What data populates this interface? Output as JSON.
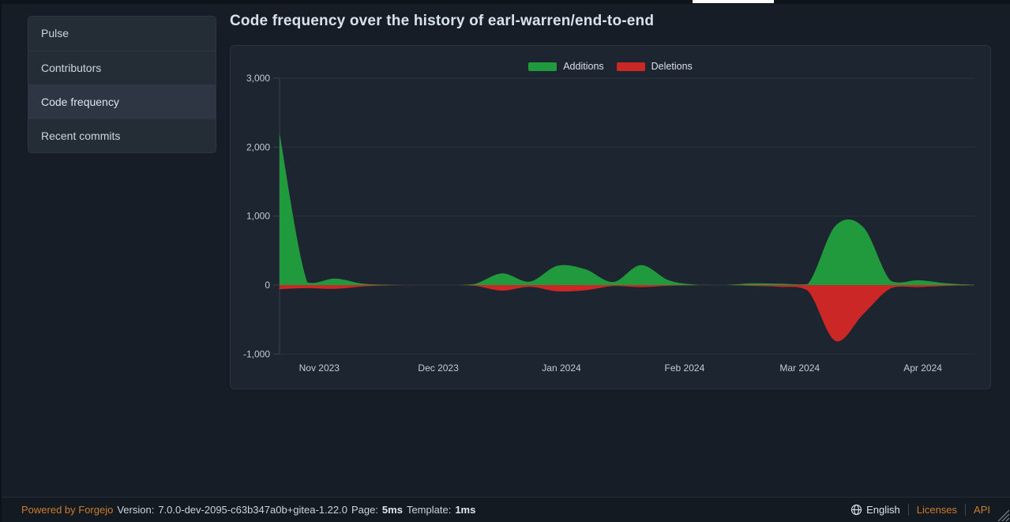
{
  "sidebar": {
    "items": [
      {
        "label": "Pulse",
        "active": false
      },
      {
        "label": "Contributors",
        "active": false
      },
      {
        "label": "Code frequency",
        "active": true
      },
      {
        "label": "Recent commits",
        "active": false
      }
    ]
  },
  "main": {
    "title": "Code frequency over the history of earl-warren/end-to-end"
  },
  "chart_data": {
    "type": "area",
    "title": "Code frequency over the history of earl-warren/end-to-end",
    "smooth": true,
    "grid": true,
    "legend_position": "top-center",
    "legend": [
      "Additions",
      "Deletions"
    ],
    "ylim": [
      -1000,
      3000
    ],
    "y_ticks": [
      {
        "value": 3000,
        "label": "3,000"
      },
      {
        "value": 2000,
        "label": "2,000"
      },
      {
        "value": 1000,
        "label": "1,000"
      },
      {
        "value": 0,
        "label": "0"
      },
      {
        "value": -1000,
        "label": "-1,000"
      }
    ],
    "x_axis_unit": "weeks (day offset from first week shown)",
    "x_max_day": 175,
    "x_labels": [
      {
        "label": "Nov 2023",
        "day": 10
      },
      {
        "label": "Dec 2023",
        "day": 40
      },
      {
        "label": "Jan 2024",
        "day": 71
      },
      {
        "label": "Feb 2024",
        "day": 102
      },
      {
        "label": "Mar 2024",
        "day": 131
      },
      {
        "label": "Apr 2024",
        "day": 162
      }
    ],
    "series": [
      {
        "name": "Additions",
        "color": "#219a3e",
        "points": [
          [
            0,
            2200
          ],
          [
            7,
            40
          ],
          [
            14,
            95
          ],
          [
            21,
            20
          ],
          [
            28,
            5
          ],
          [
            35,
            0
          ],
          [
            42,
            0
          ],
          [
            49,
            15
          ],
          [
            56,
            170
          ],
          [
            63,
            50
          ],
          [
            70,
            280
          ],
          [
            77,
            230
          ],
          [
            84,
            45
          ],
          [
            91,
            290
          ],
          [
            98,
            70
          ],
          [
            105,
            5
          ],
          [
            112,
            0
          ],
          [
            119,
            25
          ],
          [
            126,
            20
          ],
          [
            133,
            15
          ],
          [
            140,
            860
          ],
          [
            147,
            840
          ],
          [
            154,
            60
          ],
          [
            161,
            70
          ],
          [
            168,
            25
          ],
          [
            175,
            3
          ]
        ]
      },
      {
        "name": "Deletions",
        "color": "#cb2727",
        "points": [
          [
            0,
            -60
          ],
          [
            7,
            -45
          ],
          [
            14,
            -55
          ],
          [
            21,
            -20
          ],
          [
            28,
            -5
          ],
          [
            35,
            0
          ],
          [
            42,
            0
          ],
          [
            49,
            -10
          ],
          [
            56,
            -80
          ],
          [
            63,
            -25
          ],
          [
            70,
            -90
          ],
          [
            77,
            -75
          ],
          [
            84,
            -15
          ],
          [
            91,
            -30
          ],
          [
            98,
            -10
          ],
          [
            105,
            -3
          ],
          [
            112,
            0
          ],
          [
            119,
            -12
          ],
          [
            126,
            -25
          ],
          [
            133,
            -80
          ],
          [
            140,
            -810
          ],
          [
            147,
            -420
          ],
          [
            154,
            -45
          ],
          [
            161,
            -30
          ],
          [
            168,
            -12
          ],
          [
            175,
            -2
          ]
        ]
      }
    ],
    "axis_colors": {
      "grid": "#2a333e",
      "axis_line": "#3a434e",
      "tick_label": "#c3ccd5"
    }
  },
  "footer": {
    "powered_by": "Powered by Forgejo",
    "version_label": "Version:",
    "version": "7.0.0-dev-2095-c63b347a0b+gitea-1.22.0",
    "page_label": "Page:",
    "page_time": "5ms",
    "template_label": "Template:",
    "template_time": "1ms",
    "language": "English",
    "licenses_label": "Licenses",
    "api_label": "API"
  },
  "colors": {
    "additions": "#219a3e",
    "deletions": "#cb2727",
    "accent_orange": "#cc7d29",
    "page_bg": "#161d26",
    "card_bg": "#1c2530"
  }
}
